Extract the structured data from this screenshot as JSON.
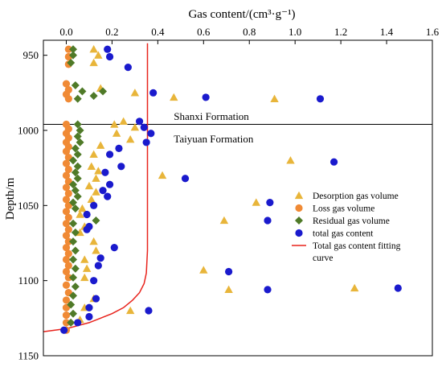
{
  "chart_data": {
    "type": "scatter",
    "xlabel": "Gas content/(cm³·g⁻¹)",
    "ylabel": "Depth/m",
    "xlim": [
      -0.1,
      1.6
    ],
    "ylim": [
      940,
      1150
    ],
    "x_axis_position": "top",
    "y_inverted": true,
    "x_ticks": [
      0.0,
      0.2,
      0.4,
      0.6,
      0.8,
      1.0,
      1.2,
      1.4,
      1.6
    ],
    "y_ticks": [
      950,
      1000,
      1050,
      1100,
      1150
    ],
    "grid": false,
    "boundary": {
      "depth": 996
    },
    "annotations": [
      {
        "text": "Shanxi Formation",
        "x": 0.47,
        "y": 991
      },
      {
        "text": "Taiyuan Formation",
        "x": 0.47,
        "y": 1006
      }
    ],
    "legend_position": "right-middle",
    "series": [
      {
        "name": "Desorption gas volume",
        "marker": "triangle",
        "color": "#E8B53A",
        "points": [
          [
            0.12,
            946
          ],
          [
            0.14,
            950
          ],
          [
            0.12,
            955
          ],
          [
            0.15,
            972
          ],
          [
            0.3,
            975
          ],
          [
            0.47,
            978
          ],
          [
            0.91,
            979
          ],
          [
            0.25,
            994
          ],
          [
            0.21,
            996
          ],
          [
            0.3,
            998
          ],
          [
            0.22,
            1002
          ],
          [
            0.28,
            1006
          ],
          [
            0.15,
            1010
          ],
          [
            0.12,
            1016
          ],
          [
            0.98,
            1020
          ],
          [
            0.11,
            1024
          ],
          [
            0.14,
            1027
          ],
          [
            0.42,
            1030
          ],
          [
            0.13,
            1032
          ],
          [
            0.1,
            1037
          ],
          [
            0.13,
            1041
          ],
          [
            0.11,
            1046
          ],
          [
            0.83,
            1048
          ],
          [
            0.07,
            1052
          ],
          [
            0.06,
            1056
          ],
          [
            0.69,
            1060
          ],
          [
            0.08,
            1064
          ],
          [
            0.06,
            1068
          ],
          [
            0.12,
            1074
          ],
          [
            0.13,
            1080
          ],
          [
            0.08,
            1086
          ],
          [
            0.09,
            1092
          ],
          [
            0.6,
            1093
          ],
          [
            0.08,
            1098
          ],
          [
            0.71,
            1106
          ],
          [
            1.26,
            1105
          ],
          [
            0.12,
            1112
          ],
          [
            0.08,
            1118
          ],
          [
            0.28,
            1120
          ],
          [
            0.06,
            1126
          ]
        ]
      },
      {
        "name": "Loss gas volume",
        "marker": "circle",
        "color": "#F08A35",
        "points": [
          [
            0.01,
            946
          ],
          [
            0.01,
            951
          ],
          [
            0.01,
            956
          ],
          [
            0.0,
            969
          ],
          [
            0.01,
            973
          ],
          [
            0.0,
            976
          ],
          [
            0.01,
            979
          ],
          [
            0.0,
            996
          ],
          [
            0.01,
            999
          ],
          [
            0.0,
            1002
          ],
          [
            0.01,
            1005
          ],
          [
            0.0,
            1008
          ],
          [
            0.01,
            1011
          ],
          [
            0.0,
            1014
          ],
          [
            0.01,
            1018
          ],
          [
            0.0,
            1022
          ],
          [
            0.01,
            1026
          ],
          [
            0.0,
            1030
          ],
          [
            0.01,
            1034
          ],
          [
            0.0,
            1038
          ],
          [
            0.01,
            1042
          ],
          [
            0.0,
            1046
          ],
          [
            0.01,
            1050
          ],
          [
            0.0,
            1054
          ],
          [
            0.01,
            1058
          ],
          [
            0.0,
            1062
          ],
          [
            0.01,
            1066
          ],
          [
            0.0,
            1070
          ],
          [
            0.01,
            1074
          ],
          [
            0.0,
            1078
          ],
          [
            0.01,
            1082
          ],
          [
            0.0,
            1086
          ],
          [
            0.01,
            1090
          ],
          [
            0.0,
            1094
          ],
          [
            0.01,
            1098
          ],
          [
            0.0,
            1103
          ],
          [
            0.01,
            1108
          ],
          [
            0.0,
            1113
          ],
          [
            0.0,
            1118
          ],
          [
            0.0,
            1123
          ],
          [
            0.0,
            1128
          ],
          [
            0.0,
            1133
          ]
        ]
      },
      {
        "name": "Residual gas volume",
        "marker": "diamond",
        "color": "#4F7A28",
        "points": [
          [
            0.03,
            946
          ],
          [
            0.03,
            950
          ],
          [
            0.02,
            955
          ],
          [
            0.04,
            970
          ],
          [
            0.07,
            974
          ],
          [
            0.12,
            977
          ],
          [
            0.05,
            979
          ],
          [
            0.16,
            974
          ],
          [
            0.05,
            996
          ],
          [
            0.06,
            1000
          ],
          [
            0.05,
            1004
          ],
          [
            0.06,
            1008
          ],
          [
            0.04,
            1012
          ],
          [
            0.05,
            1016
          ],
          [
            0.03,
            1020
          ],
          [
            0.05,
            1024
          ],
          [
            0.04,
            1028
          ],
          [
            0.05,
            1032
          ],
          [
            0.03,
            1036
          ],
          [
            0.04,
            1040
          ],
          [
            0.05,
            1044
          ],
          [
            0.03,
            1048
          ],
          [
            0.04,
            1052
          ],
          [
            0.13,
            1060
          ],
          [
            0.03,
            1062
          ],
          [
            0.04,
            1068
          ],
          [
            0.03,
            1074
          ],
          [
            0.04,
            1080
          ],
          [
            0.03,
            1086
          ],
          [
            0.04,
            1092
          ],
          [
            0.03,
            1098
          ],
          [
            0.04,
            1104
          ],
          [
            0.03,
            1110
          ],
          [
            0.02,
            1116
          ],
          [
            0.03,
            1122
          ],
          [
            0.02,
            1128
          ]
        ]
      },
      {
        "name": "total gas content",
        "marker": "circle",
        "color": "#1A1ACD",
        "points": [
          [
            0.18,
            946
          ],
          [
            0.19,
            951
          ],
          [
            0.27,
            958
          ],
          [
            0.38,
            975
          ],
          [
            0.61,
            978
          ],
          [
            1.11,
            979
          ],
          [
            0.32,
            994
          ],
          [
            0.34,
            998
          ],
          [
            0.37,
            1002
          ],
          [
            0.35,
            1008
          ],
          [
            0.23,
            1012
          ],
          [
            0.19,
            1016
          ],
          [
            1.17,
            1021
          ],
          [
            0.24,
            1024
          ],
          [
            0.17,
            1028
          ],
          [
            0.52,
            1032
          ],
          [
            0.19,
            1036
          ],
          [
            0.16,
            1040
          ],
          [
            0.18,
            1044
          ],
          [
            0.12,
            1050
          ],
          [
            0.09,
            1056
          ],
          [
            0.89,
            1048
          ],
          [
            0.88,
            1060
          ],
          [
            0.1,
            1064
          ],
          [
            0.09,
            1066
          ],
          [
            0.21,
            1078
          ],
          [
            0.15,
            1085
          ],
          [
            0.14,
            1090
          ],
          [
            0.71,
            1094
          ],
          [
            0.12,
            1100
          ],
          [
            0.88,
            1106
          ],
          [
            1.45,
            1105
          ],
          [
            0.13,
            1112
          ],
          [
            0.1,
            1118
          ],
          [
            0.36,
            1120
          ],
          [
            0.1,
            1124
          ],
          [
            0.05,
            1128
          ],
          [
            -0.01,
            1133
          ]
        ]
      },
      {
        "name": "Total gas content fitting curve",
        "marker": "line",
        "color": "#E8231C",
        "points": [
          [
            0.355,
            942
          ],
          [
            0.355,
            960
          ],
          [
            0.355,
            980
          ],
          [
            0.355,
            1000
          ],
          [
            0.355,
            1020
          ],
          [
            0.355,
            1040
          ],
          [
            0.355,
            1060
          ],
          [
            0.355,
            1080
          ],
          [
            0.35,
            1095
          ],
          [
            0.34,
            1102
          ],
          [
            0.32,
            1108
          ],
          [
            0.29,
            1113
          ],
          [
            0.25,
            1118
          ],
          [
            0.2,
            1122
          ],
          [
            0.15,
            1125
          ],
          [
            0.1,
            1128
          ],
          [
            0.05,
            1130
          ],
          [
            0.0,
            1132
          ],
          [
            -0.05,
            1133
          ],
          [
            -0.1,
            1134
          ]
        ]
      }
    ]
  }
}
